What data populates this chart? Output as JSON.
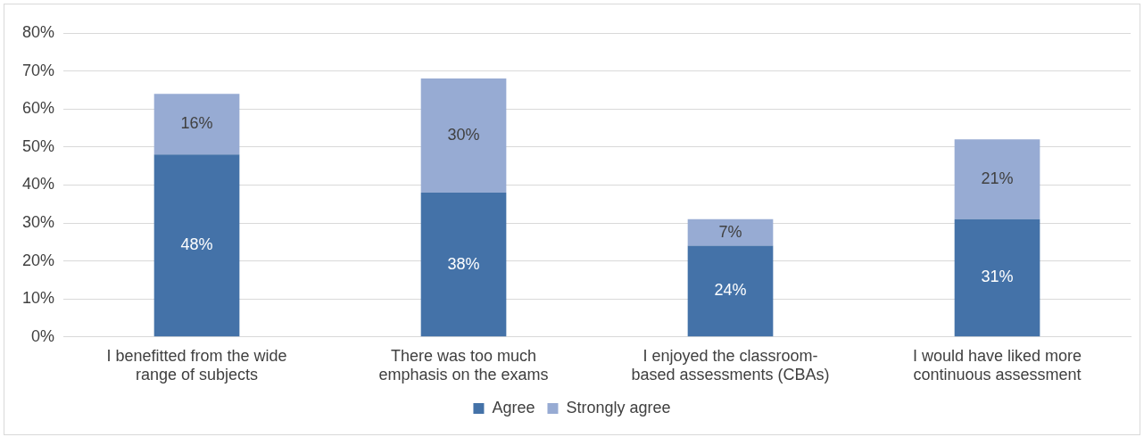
{
  "chart_data": {
    "type": "bar",
    "stacked": true,
    "categories": [
      "I benefitted from the wide range of subjects",
      "There was too much emphasis on the exams",
      "I enjoyed the classroom-based assessments (CBAs)",
      "I would have liked more continuous assessment"
    ],
    "series": [
      {
        "name": "Agree",
        "color": "#4472a8",
        "values": [
          48,
          38,
          24,
          31
        ],
        "value_labels": [
          "48%",
          "38%",
          "24%",
          "31%"
        ]
      },
      {
        "name": "Strongly agree",
        "color": "#97abd3",
        "values": [
          16,
          30,
          7,
          21
        ],
        "value_labels": [
          "16%",
          "30%",
          "7%",
          "21%"
        ]
      }
    ],
    "ylim": [
      0,
      80
    ],
    "yticks": [
      {
        "value": 0,
        "label": "0%"
      },
      {
        "value": 10,
        "label": "10%"
      },
      {
        "value": 20,
        "label": "20%"
      },
      {
        "value": 30,
        "label": "30%"
      },
      {
        "value": 40,
        "label": "40%"
      },
      {
        "value": 50,
        "label": "50%"
      },
      {
        "value": 60,
        "label": "60%"
      },
      {
        "value": 70,
        "label": "70%"
      },
      {
        "value": 80,
        "label": "80%"
      }
    ],
    "grid": "y",
    "legend": "bottom"
  }
}
